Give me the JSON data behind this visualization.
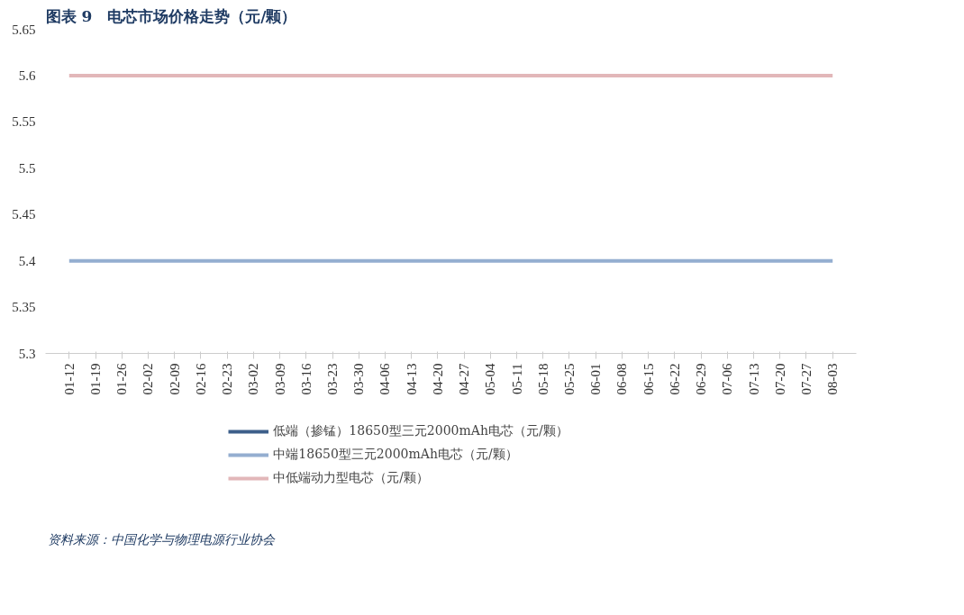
{
  "chart_data": {
    "type": "line",
    "title": "图表 9　电芯市场价格走势（元/颗）",
    "categories": [
      "01-12",
      "01-19",
      "01-26",
      "02-02",
      "02-09",
      "02-16",
      "02-23",
      "03-02",
      "03-09",
      "03-16",
      "03-23",
      "03-30",
      "04-06",
      "04-13",
      "04-20",
      "04-27",
      "05-04",
      "05-11",
      "05-18",
      "05-25",
      "06-01",
      "06-08",
      "06-15",
      "06-22",
      "06-29",
      "07-06",
      "07-13",
      "07-20",
      "07-27",
      "08-03"
    ],
    "series": [
      {
        "name": "低端（掺锰）18650型三元2000mAh电芯（元/颗）",
        "color": "#3d5f8a",
        "values": [
          null,
          null,
          null,
          null,
          null,
          null,
          null,
          null,
          null,
          null,
          null,
          null,
          null,
          null,
          null,
          null,
          null,
          null,
          null,
          null,
          null,
          null,
          null,
          null,
          null,
          null,
          null,
          null,
          null,
          null
        ]
      },
      {
        "name": "中端18650型三元2000mAh电芯（元/颗）",
        "color": "#94aed0",
        "values": [
          5.4,
          5.4,
          5.4,
          5.4,
          5.4,
          5.4,
          5.4,
          5.4,
          5.4,
          5.4,
          5.4,
          5.4,
          5.4,
          5.4,
          5.4,
          5.4,
          5.4,
          5.4,
          5.4,
          5.4,
          5.4,
          5.4,
          5.4,
          5.4,
          5.4,
          5.4,
          5.4,
          5.4,
          5.4,
          5.4
        ]
      },
      {
        "name": "中低端动力型电芯（元/颗）",
        "color": "#e2b7b9",
        "values": [
          5.6,
          5.6,
          5.6,
          5.6,
          5.6,
          5.6,
          5.6,
          5.6,
          5.6,
          5.6,
          5.6,
          5.6,
          5.6,
          5.6,
          5.6,
          5.6,
          5.6,
          5.6,
          5.6,
          5.6,
          5.6,
          5.6,
          5.6,
          5.6,
          5.6,
          5.6,
          5.6,
          5.6,
          5.6,
          5.6
        ]
      }
    ],
    "ylim": [
      5.3,
      5.65
    ],
    "yticks": [
      5.3,
      5.35,
      5.4,
      5.45,
      5.5,
      5.55,
      5.6,
      5.65
    ],
    "grid": false,
    "legend": "bottom",
    "annotations": [
      "资料来源：中国化学与物理电源行业协会"
    ]
  }
}
